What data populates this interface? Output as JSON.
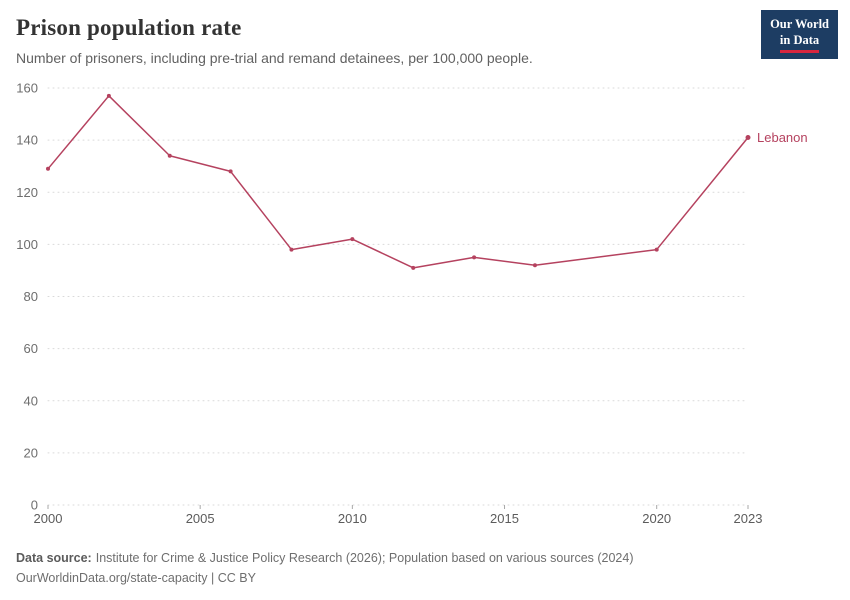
{
  "header": {
    "title": "Prison population rate",
    "subtitle": "Number of prisoners, including pre-trial and remand detainees, per 100,000 people.",
    "logo": {
      "line1": "Our World",
      "line2": "in Data"
    }
  },
  "brand": {
    "navy": "#1d3d63",
    "red": "#d7263f"
  },
  "chart_data": {
    "type": "line",
    "title": "Prison population rate",
    "xlabel": "",
    "ylabel": "",
    "xlim": [
      2000,
      2023
    ],
    "ylim": [
      0,
      160
    ],
    "xticks": [
      2000,
      2005,
      2010,
      2015,
      2020,
      2023
    ],
    "yticks": [
      0,
      20,
      40,
      60,
      80,
      100,
      120,
      140,
      160
    ],
    "grid": "horizontal-dotted",
    "legend_position": "end-of-line-label",
    "series": [
      {
        "name": "Lebanon",
        "color": "#b5425f",
        "points": [
          [
            2000,
            129
          ],
          [
            2002,
            157
          ],
          [
            2004,
            134
          ],
          [
            2006,
            128
          ],
          [
            2008,
            98
          ],
          [
            2010,
            102
          ],
          [
            2012,
            91
          ],
          [
            2014,
            95
          ],
          [
            2016,
            92
          ],
          [
            2020,
            98
          ],
          [
            2023,
            141
          ]
        ]
      }
    ]
  },
  "footer": {
    "source_label": "Data source:",
    "source_text": "Institute for Crime & Justice Policy Research (2026); Population based on various sources (2024)",
    "url": "OurWorldinData.org/state-capacity",
    "divider": " | ",
    "license": "CC BY"
  }
}
